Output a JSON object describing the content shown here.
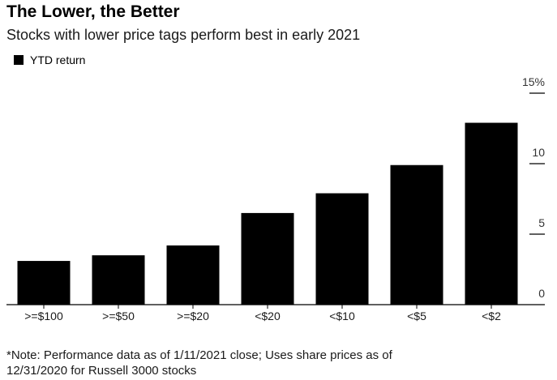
{
  "header": {
    "title": "The Lower, the Better",
    "subtitle": "Stocks with lower price tags perform best in early 2021"
  },
  "legend": {
    "label": "YTD return",
    "color": "#000000"
  },
  "note": {
    "line1": "*Note: Performance data as of 1/11/2021 close; Uses share prices as of",
    "line2": "12/31/2020 for Russell 3000 stocks"
  },
  "chart_data": {
    "type": "bar",
    "title": "The Lower, the Better",
    "subtitle": "Stocks with lower price tags perform best in early 2021",
    "categories": [
      ">=$100",
      ">=$50",
      ">=$20",
      "<$20",
      "<$10",
      "<$5",
      "<$2"
    ],
    "series": [
      {
        "name": "YTD return",
        "color": "#000000",
        "values": [
          3.1,
          3.5,
          4.2,
          6.5,
          7.9,
          9.9,
          12.9
        ]
      }
    ],
    "y_ticks": [
      0,
      5,
      10,
      15
    ],
    "y_tick_labels": [
      "0",
      "5",
      "10",
      "15%"
    ],
    "ylim": [
      0,
      15
    ],
    "y_axis_position": "right",
    "grid": false,
    "legend_position": "top-left"
  }
}
